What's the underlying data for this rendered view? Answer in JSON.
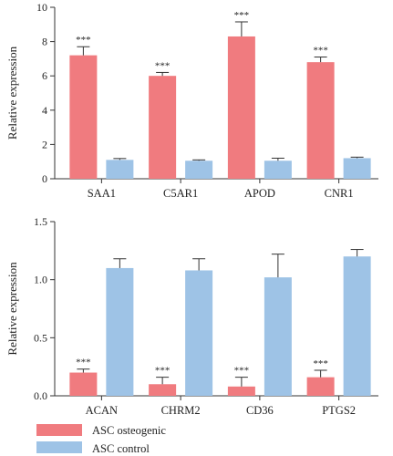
{
  "chart_data": [
    {
      "type": "bar",
      "categories": [
        "SAA1",
        "C5AR1",
        "APOD",
        "CNR1"
      ],
      "series": [
        {
          "name": "ASC osteogenic",
          "values": [
            7.2,
            6.0,
            8.3,
            6.8
          ],
          "errors": [
            0.5,
            0.2,
            0.85,
            0.3
          ],
          "significance": [
            "***",
            "***",
            "***",
            "***"
          ]
        },
        {
          "name": "ASC control",
          "values": [
            1.1,
            1.05,
            1.05,
            1.2
          ],
          "errors": [
            0.08,
            0.05,
            0.15,
            0.06
          ],
          "significance": [
            "",
            "",
            "",
            ""
          ]
        }
      ],
      "ylabel": "Relative expression",
      "ylim": [
        0,
        10
      ],
      "yticks": [
        0,
        2,
        4,
        6,
        8,
        10
      ],
      "ytick_labels": [
        "0",
        "2",
        "4",
        "6",
        "8",
        "10"
      ],
      "grid": false
    },
    {
      "type": "bar",
      "categories": [
        "ACAN",
        "CHRM2",
        "CD36",
        "PTGS2"
      ],
      "series": [
        {
          "name": "ASC osteogenic",
          "values": [
            0.2,
            0.1,
            0.08,
            0.16
          ],
          "errors": [
            0.03,
            0.06,
            0.08,
            0.06
          ],
          "significance": [
            "***",
            "***",
            "***",
            "***"
          ]
        },
        {
          "name": "ASC control",
          "values": [
            1.1,
            1.08,
            1.02,
            1.2
          ],
          "errors": [
            0.08,
            0.1,
            0.2,
            0.06
          ],
          "significance": [
            "",
            "",
            "",
            ""
          ]
        }
      ],
      "ylabel": "Relative expression",
      "ylim": [
        0,
        1.5
      ],
      "yticks": [
        0,
        0.5,
        1.0,
        1.5
      ],
      "ytick_labels": [
        "0.0",
        "0.5",
        "1.0",
        "1.5"
      ],
      "grid": false
    }
  ],
  "legend": {
    "placement": "bottom-left",
    "items": [
      {
        "label": "ASC osteogenic",
        "color": "#f07b7f"
      },
      {
        "label": "ASC control",
        "color": "#9ec3e6"
      }
    ]
  },
  "colors": {
    "osteogenic": "#f07b7f",
    "control": "#9ec3e6",
    "axis": "#333333"
  }
}
